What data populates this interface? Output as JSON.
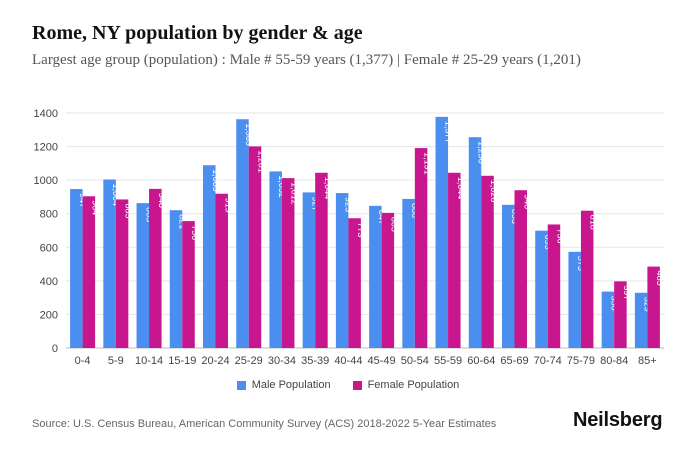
{
  "title": "Rome, NY population by gender & age",
  "subtitle": "Largest age group (population) : Male # 55-59 years (1,377) | Female # 25-29 years (1,201)",
  "source": "Source: U.S. Census Bureau, American Community Survey (ACS) 2018-2022 5-Year Estimates",
  "brand": "Neilsberg",
  "colors": {
    "male": "#4a8ff0",
    "female": "#c8168f",
    "grid": "#e6e6e6"
  },
  "chart_data": {
    "type": "bar",
    "categories": [
      "0-4",
      "5-9",
      "10-14",
      "15-19",
      "20-24",
      "25-29",
      "30-34",
      "35-39",
      "40-44",
      "45-49",
      "50-54",
      "55-59",
      "60-64",
      "65-69",
      "70-74",
      "75-79",
      "80-84",
      "85+"
    ],
    "series": [
      {
        "name": "Male Population",
        "values": [
          947,
          1004,
          863,
          821,
          1089,
          1363,
          1052,
          927,
          923,
          847,
          888,
          1377,
          1256,
          853,
          699,
          573,
          336,
          329
        ],
        "labels": [
          "947",
          "1,004",
          "863",
          "821",
          "1,089",
          "1,363",
          "1,052",
          "927",
          "923",
          "847",
          "888",
          "1,377",
          "1,256",
          "853",
          "699",
          "573",
          "336",
          "329"
        ]
      },
      {
        "name": "Female Population",
        "values": [
          904,
          885,
          948,
          756,
          919,
          1201,
          1012,
          1044,
          773,
          805,
          1191,
          1044,
          1026,
          940,
          736,
          818,
          397,
          485
        ],
        "labels": [
          "904",
          "885",
          "948",
          "756",
          "919",
          "1,201",
          "1,012",
          "1,044",
          "773",
          "805",
          "1,191",
          "1,044",
          "1,026",
          "940",
          "736",
          "818",
          "397",
          "485"
        ]
      }
    ],
    "ylim": [
      0,
      1400
    ],
    "yticks": [
      0,
      200,
      400,
      600,
      800,
      1000,
      1200,
      1400
    ],
    "legend_position": "bottom",
    "grid": true
  }
}
